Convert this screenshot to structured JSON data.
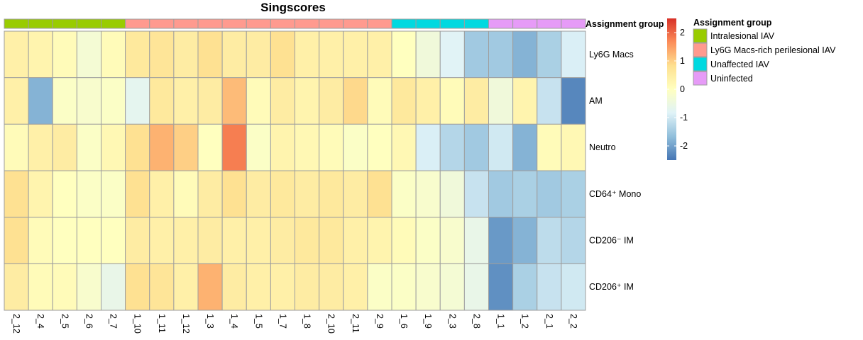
{
  "chart_data": {
    "type": "heatmap",
    "title": "Singscores",
    "columns": [
      "2_12",
      "2_4",
      "2_5",
      "2_6",
      "2_7",
      "1_10",
      "1_11",
      "1_12",
      "1_3",
      "1_4",
      "1_5",
      "1_7",
      "1_8",
      "2_10",
      "2_11",
      "2_9",
      "1_6",
      "1_9",
      "2_3",
      "2_8",
      "1_1",
      "1_2",
      "2_1",
      "2_2"
    ],
    "rows": [
      "Ly6G Macs",
      "AM",
      "Neutro",
      "CD64⁺ Mono",
      "CD206⁻ IM",
      "CD206⁺ IM"
    ],
    "values": [
      [
        0.4,
        0.3,
        0.1,
        -0.3,
        0.1,
        0.6,
        0.7,
        0.5,
        0.8,
        0.5,
        0.5,
        0.8,
        0.4,
        0.4,
        0.4,
        0.4,
        0.0,
        -0.4,
        -0.8,
        -1.5,
        -1.5,
        -1.8,
        -1.4,
        -0.9
      ],
      [
        0.4,
        -1.8,
        -0.1,
        -0.2,
        -0.1,
        -0.7,
        0.6,
        0.4,
        0.5,
        1.2,
        0.1,
        0.5,
        0.3,
        0.5,
        0.9,
        0.1,
        0.6,
        0.4,
        0.1,
        0.5,
        -0.4,
        0.3,
        -1.1,
        -2.3
      ],
      [
        0.1,
        0.4,
        0.5,
        -0.1,
        0.2,
        0.8,
        1.3,
        1.0,
        0.0,
        1.8,
        -0.1,
        0.3,
        0.2,
        0.1,
        -0.1,
        0.0,
        0.2,
        -0.9,
        -1.3,
        -1.5,
        -1.0,
        -1.8,
        0.1,
        0.2
      ],
      [
        0.8,
        0.3,
        0.0,
        -0.1,
        -0.1,
        0.8,
        0.4,
        0.1,
        0.5,
        0.8,
        0.5,
        0.6,
        0.5,
        0.6,
        0.5,
        0.8,
        -0.1,
        -0.2,
        -0.4,
        -1.1,
        -1.5,
        -1.4,
        -1.5,
        -1.4
      ],
      [
        0.8,
        0.1,
        0.0,
        0.0,
        0.0,
        0.5,
        0.4,
        0.4,
        0.5,
        0.4,
        0.4,
        0.5,
        0.6,
        0.6,
        0.4,
        0.3,
        0.1,
        -0.1,
        -0.2,
        -0.6,
        -2.1,
        -1.8,
        -1.2,
        -1.3
      ],
      [
        0.5,
        0.1,
        0.1,
        -0.2,
        -0.6,
        0.8,
        0.7,
        0.4,
        1.3,
        0.5,
        0.4,
        0.4,
        0.5,
        0.5,
        0.4,
        -0.1,
        -0.1,
        -0.2,
        -0.3,
        -0.6,
        -2.2,
        -1.4,
        -1.1,
        -1.0
      ]
    ],
    "column_groups": [
      "Intralesional IAV",
      "Intralesional IAV",
      "Intralesional IAV",
      "Intralesional IAV",
      "Intralesional IAV",
      "Ly6G Macs-rich perilesional IAV",
      "Ly6G Macs-rich perilesional IAV",
      "Ly6G Macs-rich perilesional IAV",
      "Ly6G Macs-rich perilesional IAV",
      "Ly6G Macs-rich perilesional IAV",
      "Ly6G Macs-rich perilesional IAV",
      "Ly6G Macs-rich perilesional IAV",
      "Ly6G Macs-rich perilesional IAV",
      "Ly6G Macs-rich perilesional IAV",
      "Ly6G Macs-rich perilesional IAV",
      "Ly6G Macs-rich perilesional IAV",
      "Unaffected IAV",
      "Unaffected IAV",
      "Unaffected IAV",
      "Unaffected IAV",
      "Uninfected",
      "Uninfected",
      "Uninfected",
      "Uninfected"
    ],
    "annotation": {
      "label": "Assignment group",
      "legend_title": "Assignment group",
      "groups": [
        {
          "name": "Intralesional IAV",
          "color": "#99CC00"
        },
        {
          "name": "Ly6G Macs-rich perilesional IAV",
          "color": "#FF9A8F"
        },
        {
          "name": "Unaffected IAV",
          "color": "#00D9E0"
        },
        {
          "name": "Uninfected",
          "color": "#E69BF7"
        }
      ]
    },
    "color_scale": {
      "range": [
        -2.5,
        2.5
      ],
      "ticks": [
        "2",
        "1",
        "0",
        "-1",
        "-2"
      ],
      "colors": [
        "#4575B4",
        "#91BFDB",
        "#E0F3F8",
        "#FFFFBF",
        "#FEE090",
        "#FC8D59",
        "#D73027"
      ]
    },
    "legend_placement": "right",
    "grid": true
  }
}
